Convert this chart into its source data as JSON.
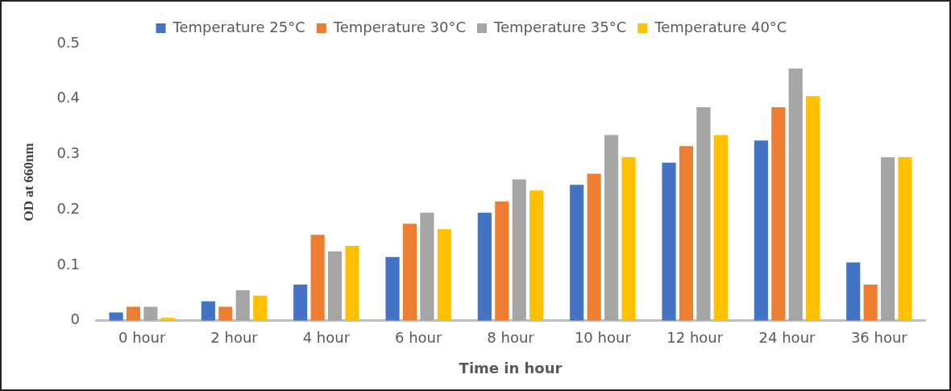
{
  "chart_data": {
    "type": "bar",
    "xlabel": "Time in hour",
    "ylabel": "OD at 660nm",
    "categories": [
      "0 hour",
      "2 hour",
      "4 hour",
      "6 hour",
      "8 hour",
      "10 hour",
      "12 hour",
      "24 hour",
      "36 hour"
    ],
    "series": [
      {
        "name": "Temperature 25°C",
        "color": "#4472c4",
        "values": [
          0.015,
          0.035,
          0.065,
          0.115,
          0.195,
          0.245,
          0.285,
          0.325,
          0.105
        ]
      },
      {
        "name": "Temperature 30°C",
        "color": "#ed7d31",
        "values": [
          0.025,
          0.025,
          0.155,
          0.175,
          0.215,
          0.265,
          0.315,
          0.385,
          0.065
        ]
      },
      {
        "name": "Temperature 35°C",
        "color": "#a5a5a5",
        "values": [
          0.025,
          0.055,
          0.125,
          0.195,
          0.255,
          0.335,
          0.385,
          0.455,
          0.295
        ]
      },
      {
        "name": "Temperature 40°C",
        "color": "#ffc000",
        "values": [
          0.005,
          0.045,
          0.135,
          0.165,
          0.235,
          0.295,
          0.335,
          0.405,
          0.295
        ]
      }
    ],
    "ylim": [
      0,
      0.5
    ],
    "yticks": [
      0,
      0.1,
      0.2,
      0.3,
      0.4,
      0.5
    ],
    "grid": false,
    "legend": "top"
  }
}
